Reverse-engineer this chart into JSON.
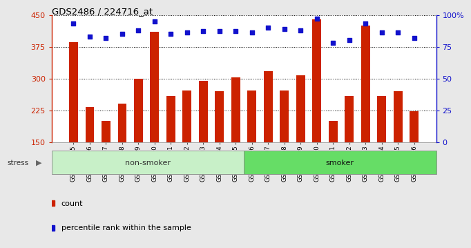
{
  "title": "GDS2486 / 224716_at",
  "categories": [
    "GSM101095",
    "GSM101096",
    "GSM101097",
    "GSM101098",
    "GSM101099",
    "GSM101100",
    "GSM101101",
    "GSM101102",
    "GSM101103",
    "GSM101104",
    "GSM101105",
    "GSM101106",
    "GSM101107",
    "GSM101108",
    "GSM101109",
    "GSM101110",
    "GSM101111",
    "GSM101112",
    "GSM101113",
    "GSM101114",
    "GSM101115",
    "GSM101116"
  ],
  "counts": [
    385,
    232,
    200,
    240,
    300,
    410,
    258,
    272,
    295,
    270,
    302,
    272,
    318,
    272,
    308,
    440,
    200,
    258,
    425,
    258,
    270,
    222
  ],
  "percentile_ranks": [
    93,
    83,
    82,
    85,
    88,
    95,
    85,
    86,
    87,
    87,
    87,
    86,
    90,
    89,
    88,
    97,
    78,
    80,
    93,
    86,
    86,
    82
  ],
  "group_split": 11,
  "ylim_left": [
    150,
    450
  ],
  "ylim_right": [
    0,
    100
  ],
  "yticks_left": [
    150,
    225,
    300,
    375,
    450
  ],
  "yticks_right": [
    0,
    25,
    50,
    75,
    100
  ],
  "bar_color": "#cc2200",
  "dot_color": "#1111cc",
  "bg_color": "#e8e8e8",
  "plot_bg": "#ffffff",
  "axis_color_left": "#cc2200",
  "axis_color_right": "#1111cc",
  "ns_color": "#c8f0c8",
  "sm_color": "#66dd66",
  "band_edge": "#888888",
  "legend_count": "count",
  "legend_pct": "percentile rank within the sample"
}
